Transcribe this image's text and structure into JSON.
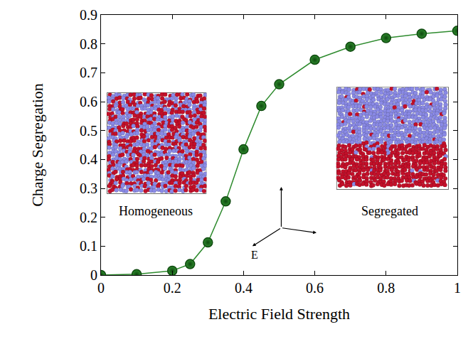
{
  "chart_data": {
    "type": "line",
    "xlabel": "Electric Field Strength",
    "ylabel": "Charge Segregation",
    "x": [
      0,
      0.1,
      0.2,
      0.25,
      0.3,
      0.35,
      0.4,
      0.45,
      0.5,
      0.6,
      0.7,
      0.8,
      0.9,
      1.0
    ],
    "values": [
      0,
      0.003,
      0.015,
      0.038,
      0.113,
      0.255,
      0.435,
      0.585,
      0.66,
      0.745,
      0.79,
      0.82,
      0.835,
      0.845
    ],
    "color": "#2e8b2e",
    "marker": "circle",
    "xlim": [
      0,
      1
    ],
    "ylim": [
      0,
      0.9
    ],
    "xticks": [
      0,
      0.2,
      0.4,
      0.6,
      0.8,
      1
    ],
    "yticks": [
      0,
      0.1,
      0.2,
      0.3,
      0.4,
      0.5,
      0.6,
      0.7,
      0.8,
      0.9
    ],
    "annotations": [
      "Homogeneous",
      "Segregated",
      "E"
    ]
  }
}
